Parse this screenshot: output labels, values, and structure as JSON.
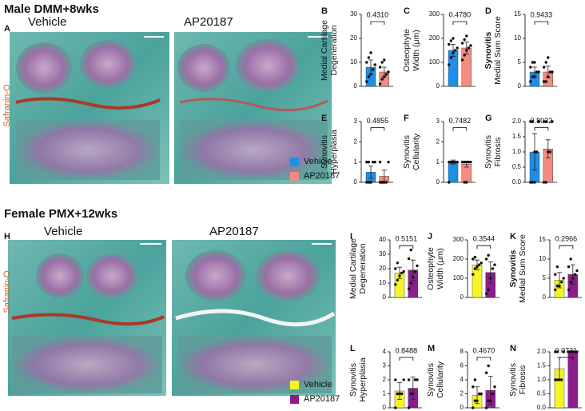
{
  "figure": {
    "sections": [
      {
        "title": "Male DMM+8wks",
        "panel": "A",
        "labels": [
          "Vehicle",
          "AP20187"
        ],
        "stain": "Safranin-O",
        "legend": [
          {
            "name": "Vehicle",
            "color": "#1e8fe8"
          },
          {
            "name": "AP20187",
            "color": "#f28b82"
          }
        ]
      },
      {
        "title": "Female PMX+12wks",
        "panel": "H",
        "labels": [
          "Vehicle",
          "AP20187"
        ],
        "stain": "Safranin-O",
        "legend": [
          {
            "name": "Vehicle",
            "color": "#f5f523"
          },
          {
            "name": "AP20187",
            "color": "#8b1d8b"
          }
        ]
      }
    ]
  },
  "chart_data": [
    {
      "type": "bar",
      "panel": "B",
      "ylabel": [
        "Medial Cartilage",
        "Degeneration"
      ],
      "ylim": [
        0,
        30
      ],
      "yticks": [
        0,
        10,
        20,
        30
      ],
      "values": [
        8,
        6
      ],
      "errors": [
        3,
        2
      ],
      "colors": [
        "#1e8fe8",
        "#f28b82"
      ],
      "points": [
        [
          2,
          4,
          5,
          7,
          9,
          10,
          12,
          14
        ],
        [
          1,
          3,
          4,
          5,
          6,
          8,
          10,
          11
        ]
      ],
      "pvalue": "0.4310"
    },
    {
      "type": "bar",
      "panel": "C",
      "ylabel": [
        "Osteophyte",
        "Width (μm)"
      ],
      "ylim": [
        0,
        300
      ],
      "yticks": [
        0,
        100,
        200,
        300
      ],
      "values": [
        150,
        160
      ],
      "errors": [
        25,
        25
      ],
      "colors": [
        "#1e8fe8",
        "#f28b82"
      ],
      "points": [
        [
          90,
          120,
          140,
          150,
          160,
          175,
          190,
          200
        ],
        [
          110,
          130,
          150,
          160,
          170,
          180,
          195,
          210
        ]
      ],
      "pvalue": "0.4780"
    },
    {
      "type": "bar",
      "panel": "D",
      "ylabel": [
        "Synovitis",
        "Medial Sum Score"
      ],
      "ylim": [
        0,
        15
      ],
      "yticks": [
        0,
        5,
        10,
        15
      ],
      "values": [
        3,
        3
      ],
      "errors": [
        1,
        1.2
      ],
      "colors": [
        "#1e8fe8",
        "#f28b82"
      ],
      "points": [
        [
          1,
          2,
          2,
          3,
          3,
          4,
          5,
          5
        ],
        [
          1,
          1,
          2,
          3,
          3,
          4,
          5,
          6
        ]
      ],
      "pvalue": "0.9433"
    },
    {
      "type": "bar",
      "panel": "E",
      "ylabel": [
        "Synovitis",
        "Hyperplasia"
      ],
      "ylim": [
        0,
        3
      ],
      "yticks": [
        0,
        1,
        2,
        3
      ],
      "values": [
        0.5,
        0.3
      ],
      "errors": [
        0.3,
        0.3
      ],
      "colors": [
        "#1e8fe8",
        "#f28b82"
      ],
      "points": [
        [
          0,
          0,
          0,
          1,
          1,
          1,
          1,
          0
        ],
        [
          0,
          0,
          0,
          0,
          1,
          1,
          0,
          0
        ]
      ],
      "pvalue": "0.4855"
    },
    {
      "type": "bar",
      "panel": "F",
      "ylabel": [
        "Synovitis",
        "Cellularity"
      ],
      "ylim": [
        0,
        3
      ],
      "yticks": [
        0,
        1,
        2,
        3
      ],
      "values": [
        1,
        0.9
      ],
      "errors": [
        0.1,
        0.15
      ],
      "colors": [
        "#1e8fe8",
        "#f28b82"
      ],
      "points": [
        [
          1,
          1,
          1,
          1,
          1,
          0,
          1,
          1
        ],
        [
          1,
          1,
          0,
          1,
          1,
          1,
          0,
          1
        ]
      ],
      "pvalue": "0.7482"
    },
    {
      "type": "bar",
      "panel": "G",
      "ylabel": [
        "Synovitis",
        "Fibrosis"
      ],
      "ylim": [
        0,
        2
      ],
      "yticks": [
        {
          "value": 0,
          "label": "0.0"
        },
        {
          "value": 0.5,
          "label": "0.5"
        },
        {
          "value": 1,
          "label": "1.0"
        },
        {
          "value": 1.5,
          "label": "1.5"
        },
        {
          "value": 2,
          "label": "2.0"
        }
      ],
      "values": [
        1,
        1.1
      ],
      "errors": [
        0.6,
        0.3
      ],
      "colors": [
        "#1e8fe8",
        "#f28b82"
      ],
      "points": [
        [
          0,
          0,
          1,
          1,
          2,
          2,
          2,
          0
        ],
        [
          0,
          0,
          1,
          1,
          2,
          2,
          2,
          1
        ]
      ],
      "pvalue": "0.8032"
    },
    {
      "type": "bar",
      "panel": "I",
      "ylabel": [
        "Medial Cartilage",
        "Degeneration"
      ],
      "ylim": [
        0,
        40
      ],
      "yticks": [
        0,
        10,
        20,
        30,
        40
      ],
      "values": [
        17,
        19
      ],
      "errors": [
        4,
        7
      ],
      "colors": [
        "#f5f523",
        "#8b1d8b"
      ],
      "points": [
        [
          9,
          12,
          15,
          17,
          18,
          20,
          24
        ],
        [
          6,
          10,
          14,
          18,
          22,
          27,
          33
        ]
      ],
      "pvalue": "0.5151"
    },
    {
      "type": "bar",
      "panel": "J",
      "ylabel": [
        "Osteophyte",
        "Width (μm)"
      ],
      "ylim": [
        0,
        300
      ],
      "yticks": [
        0,
        100,
        200,
        300
      ],
      "values": [
        170,
        130
      ],
      "errors": [
        25,
        55
      ],
      "colors": [
        "#f5f523",
        "#8b1d8b"
      ],
      "points": [
        [
          120,
          150,
          160,
          170,
          180,
          200,
          210
        ],
        [
          20,
          40,
          100,
          150,
          170,
          200,
          220
        ]
      ],
      "pvalue": "0.3544"
    },
    {
      "type": "bar",
      "panel": "K",
      "ylabel": [
        "Synovitis",
        "Medial Sum Score"
      ],
      "ylim": [
        0,
        15
      ],
      "yticks": [
        0,
        5,
        10,
        15
      ],
      "values": [
        4.5,
        6
      ],
      "errors": [
        2,
        2.5
      ],
      "colors": [
        "#f5f523",
        "#8b1d8b"
      ],
      "points": [
        [
          2,
          3,
          3,
          4,
          5,
          6,
          8
        ],
        [
          2,
          4,
          5,
          6,
          7,
          8,
          10
        ]
      ],
      "pvalue": "0.2966"
    },
    {
      "type": "bar",
      "panel": "L",
      "ylabel": [
        "Synovitis",
        "Hyperplasia"
      ],
      "ylim": [
        0,
        4
      ],
      "yticks": [
        0,
        1,
        2,
        3,
        4
      ],
      "values": [
        1.2,
        1.4
      ],
      "errors": [
        0.6,
        0.8
      ],
      "colors": [
        "#f5f523",
        "#8b1d8b"
      ],
      "points": [
        [
          0,
          1,
          1,
          1,
          2,
          2,
          1
        ],
        [
          0,
          1,
          1,
          2,
          2,
          2,
          1
        ]
      ],
      "pvalue": "0.8488"
    },
    {
      "type": "bar",
      "panel": "M",
      "ylabel": [
        "Synovitis",
        "Cellularity"
      ],
      "ylim": [
        0,
        8
      ],
      "yticks": [
        0,
        2,
        4,
        6,
        8
      ],
      "values": [
        1.8,
        2.5
      ],
      "errors": [
        1.2,
        2
      ],
      "colors": [
        "#f5f523",
        "#8b1d8b"
      ],
      "points": [
        [
          0,
          1,
          1,
          2,
          2,
          3,
          4
        ],
        [
          0,
          1,
          1,
          2,
          3,
          5,
          6
        ]
      ],
      "pvalue": "0.4670"
    },
    {
      "type": "bar",
      "panel": "N",
      "ylabel": [
        "Synovitis",
        "Fibrosis"
      ],
      "ylim": [
        0,
        2
      ],
      "yticks": [
        {
          "value": 0,
          "label": "0.0"
        },
        {
          "value": 0.5,
          "label": "0.5"
        },
        {
          "value": 1,
          "label": "1.0"
        },
        {
          "value": 1.5,
          "label": "1.5"
        },
        {
          "value": 2,
          "label": "2.0"
        }
      ],
      "values": [
        1.4,
        2
      ],
      "errors": [
        0.4,
        0
      ],
      "colors": [
        "#f5f523",
        "#8b1d8b"
      ],
      "points": [
        [
          1,
          1,
          1,
          1,
          2,
          2,
          2
        ],
        [
          2,
          2,
          2,
          2,
          2,
          2,
          2
        ]
      ],
      "pvalue": "0.0731"
    }
  ]
}
